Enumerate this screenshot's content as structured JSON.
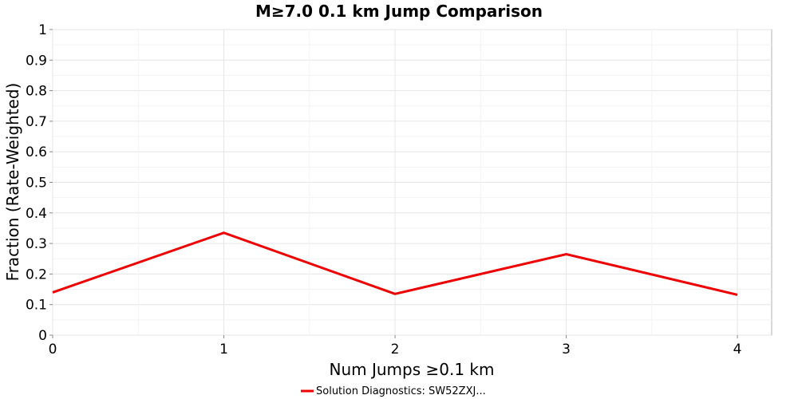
{
  "chart_data": {
    "type": "line",
    "title": "M≥7.0 0.1 km Jump Comparison",
    "xlabel": "Num Jumps ≥0.1 km",
    "ylabel": "Fraction (Rate-Weighted)",
    "xlim": [
      0,
      4.2
    ],
    "ylim": [
      0,
      1
    ],
    "x_ticks": [
      "0",
      "1",
      "2",
      "3",
      "4"
    ],
    "y_ticks": [
      "0",
      "0.1",
      "0.2",
      "0.3",
      "0.4",
      "0.5",
      "0.6",
      "0.7",
      "0.8",
      "0.9",
      "1"
    ],
    "grid": true,
    "legend_position": "bottom-center",
    "series": [
      {
        "name": "Solution Diagnostics: SW52ZXJ...",
        "color": "#ee0000",
        "x": [
          0,
          1,
          2,
          3,
          4
        ],
        "y": [
          0.14,
          0.335,
          0.135,
          0.265,
          0.132
        ]
      }
    ]
  }
}
